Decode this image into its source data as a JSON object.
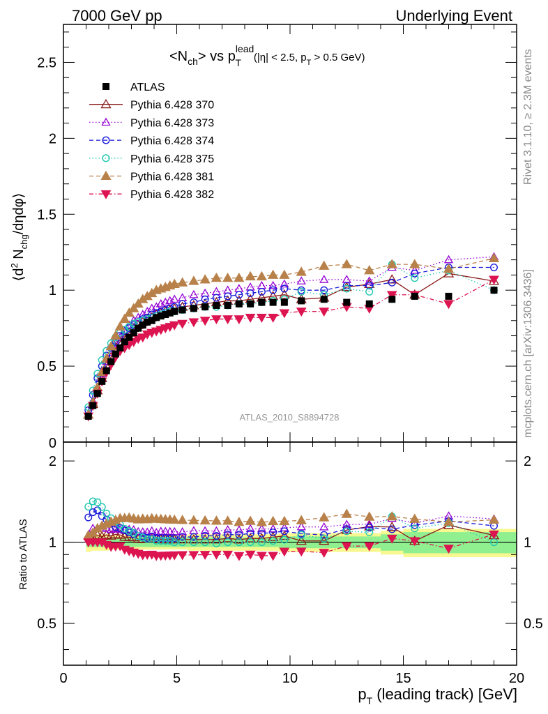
{
  "header": {
    "left": "7000 GeV pp",
    "right": "Underlying Event"
  },
  "side_labels": {
    "top": "Rivet 3.1.10, ≥ 2.3M events",
    "bottom": "mcplots.cern.ch [arXiv:1306.3436]"
  },
  "analysis_tag": "ATLAS_2010_S8894728",
  "colors": {
    "ATLAS": "#000000",
    "p370": "#8b1a1a",
    "p373": "#9400d3",
    "p374": "#1a1ad9",
    "p375": "#20c8b0",
    "p381": "#b8814a",
    "p382": "#dc1450",
    "band_inner": "#90f090",
    "band_outer": "#f8f890"
  },
  "chart_data": {
    "type": "scatter",
    "title": "<N_ch> vs p_T^lead (|η| < 2.5, p_T > 0.5 GeV)",
    "xlabel": "p_T (leading track) [GeV]",
    "ylabel": "⟨d² N_chg/dηdφ⟩",
    "ratio_ylabel": "Ratio to ATLAS",
    "xlim": [
      0,
      20
    ],
    "ylim": [
      0,
      2.75
    ],
    "ratio_ylim": [
      0.35,
      2.35
    ],
    "x_ticks": [
      0,
      5,
      10,
      15,
      20
    ],
    "y_ticks": [
      0.5,
      1,
      1.5,
      2,
      2.5
    ],
    "y_zero_label": "0",
    "ratio_ticks": [
      0.5,
      1,
      2
    ],
    "legend_position": "top-left",
    "x": [
      1.1,
      1.3,
      1.5,
      1.7,
      1.9,
      2.1,
      2.3,
      2.5,
      2.7,
      2.9,
      3.1,
      3.3,
      3.5,
      3.7,
      3.9,
      4.1,
      4.3,
      4.5,
      4.7,
      4.9,
      5.25,
      5.75,
      6.25,
      6.75,
      7.25,
      7.75,
      8.25,
      8.75,
      9.25,
      9.75,
      10.5,
      11.5,
      12.5,
      13.5,
      14.5,
      15.5,
      17.0,
      19.0
    ],
    "series": [
      {
        "name": "ATLAS",
        "key": "ATLAS",
        "marker": "square",
        "dash": "none",
        "values": [
          0.17,
          0.24,
          0.32,
          0.4,
          0.47,
          0.53,
          0.58,
          0.62,
          0.66,
          0.69,
          0.72,
          0.75,
          0.77,
          0.79,
          0.8,
          0.82,
          0.83,
          0.84,
          0.85,
          0.86,
          0.87,
          0.88,
          0.89,
          0.9,
          0.9,
          0.91,
          0.91,
          0.92,
          0.92,
          0.92,
          0.93,
          0.94,
          0.92,
          0.91,
          0.94,
          0.96,
          0.96,
          1.0
        ]
      },
      {
        "name": "Pythia 6.428 370",
        "key": "p370",
        "marker": "tri-open",
        "dash": "none",
        "values": [
          0.18,
          0.25,
          0.34,
          0.42,
          0.5,
          0.56,
          0.62,
          0.66,
          0.69,
          0.72,
          0.75,
          0.77,
          0.79,
          0.81,
          0.82,
          0.84,
          0.85,
          0.86,
          0.87,
          0.88,
          0.89,
          0.9,
          0.91,
          0.92,
          0.93,
          0.93,
          0.94,
          0.95,
          0.96,
          0.97,
          0.94,
          0.95,
          1.02,
          1.04,
          1.07,
          0.97,
          1.11,
          1.06
        ]
      },
      {
        "name": "Pythia 6.428 373",
        "key": "p373",
        "marker": "tri-open-small",
        "dash": "1.5 3",
        "values": [
          0.18,
          0.27,
          0.36,
          0.45,
          0.53,
          0.59,
          0.65,
          0.69,
          0.73,
          0.77,
          0.8,
          0.82,
          0.84,
          0.86,
          0.88,
          0.89,
          0.91,
          0.92,
          0.93,
          0.94,
          0.95,
          0.97,
          0.98,
          0.99,
          1.0,
          1.01,
          1.02,
          1.03,
          1.03,
          1.04,
          1.06,
          1.07,
          1.07,
          1.06,
          1.15,
          1.13,
          1.2,
          1.22
        ]
      },
      {
        "name": "Pythia 6.428 374",
        "key": "p374",
        "marker": "circle-open",
        "dash": "6 4",
        "values": [
          0.21,
          0.31,
          0.42,
          0.5,
          0.57,
          0.62,
          0.66,
          0.7,
          0.73,
          0.75,
          0.77,
          0.79,
          0.81,
          0.82,
          0.84,
          0.85,
          0.86,
          0.87,
          0.88,
          0.89,
          0.91,
          0.92,
          0.94,
          0.95,
          0.96,
          0.97,
          0.98,
          0.99,
          1.0,
          1.01,
          1.0,
          1.0,
          1.03,
          1.03,
          1.05,
          1.11,
          1.15,
          1.15
        ]
      },
      {
        "name": "Pythia 6.428 375",
        "key": "p375",
        "marker": "circle-open",
        "dash": "1.5 3",
        "values": [
          0.23,
          0.34,
          0.45,
          0.54,
          0.6,
          0.65,
          0.69,
          0.72,
          0.74,
          0.76,
          0.78,
          0.79,
          0.8,
          0.81,
          0.82,
          0.83,
          0.84,
          0.85,
          0.86,
          0.86,
          0.87,
          0.88,
          0.89,
          0.89,
          0.9,
          0.91,
          0.91,
          0.92,
          0.93,
          0.94,
          0.99,
          0.97,
          1.01,
          0.99,
          1.17,
          1.08,
          1.13,
          1.0
        ]
      },
      {
        "name": "Pythia 6.428 381",
        "key": "p381",
        "marker": "tri-filled",
        "dash": "6 4",
        "values": [
          0.18,
          0.26,
          0.36,
          0.46,
          0.55,
          0.63,
          0.7,
          0.76,
          0.81,
          0.85,
          0.88,
          0.91,
          0.94,
          0.96,
          0.98,
          1.0,
          1.01,
          1.02,
          1.03,
          1.04,
          1.05,
          1.06,
          1.07,
          1.08,
          1.08,
          1.08,
          1.09,
          1.09,
          1.1,
          1.1,
          1.12,
          1.16,
          1.17,
          1.13,
          1.17,
          1.17,
          1.14,
          1.21
        ]
      },
      {
        "name": "Pythia 6.428 382",
        "key": "p382",
        "marker": "tri-down-filled",
        "dash": "6 3 1.5 3",
        "values": [
          0.17,
          0.24,
          0.32,
          0.4,
          0.46,
          0.51,
          0.56,
          0.6,
          0.62,
          0.64,
          0.66,
          0.68,
          0.69,
          0.71,
          0.72,
          0.73,
          0.74,
          0.75,
          0.76,
          0.77,
          0.78,
          0.79,
          0.8,
          0.81,
          0.81,
          0.81,
          0.82,
          0.82,
          0.82,
          0.85,
          0.86,
          0.86,
          0.89,
          0.88,
          0.97,
          0.97,
          0.91,
          1.07
        ]
      }
    ],
    "ratio_band": {
      "x_edges": [
        1.0,
        1.2,
        1.4,
        1.6,
        1.8,
        2.0,
        2.2,
        2.4,
        2.6,
        2.8,
        3.0,
        3.2,
        3.4,
        3.6,
        3.8,
        4.0,
        4.2,
        4.4,
        4.6,
        4.8,
        5.0,
        5.5,
        6.0,
        6.5,
        7.0,
        7.5,
        8.0,
        8.5,
        9.0,
        9.5,
        10.0,
        11.0,
        12.0,
        13.0,
        14.0,
        15.0,
        16.0,
        18.0,
        20.0
      ],
      "inner": [
        0.04,
        0.04,
        0.04,
        0.04,
        0.04,
        0.04,
        0.04,
        0.04,
        0.04,
        0.04,
        0.04,
        0.04,
        0.04,
        0.04,
        0.04,
        0.04,
        0.04,
        0.04,
        0.04,
        0.04,
        0.04,
        0.04,
        0.04,
        0.04,
        0.04,
        0.04,
        0.04,
        0.04,
        0.04,
        0.05,
        0.05,
        0.05,
        0.05,
        0.05,
        0.07,
        0.09,
        0.09,
        0.09
      ],
      "outer": [
        0.08,
        0.07,
        0.07,
        0.07,
        0.07,
        0.06,
        0.06,
        0.06,
        0.06,
        0.06,
        0.06,
        0.06,
        0.06,
        0.06,
        0.06,
        0.06,
        0.06,
        0.06,
        0.06,
        0.06,
        0.06,
        0.07,
        0.07,
        0.07,
        0.07,
        0.07,
        0.07,
        0.07,
        0.07,
        0.08,
        0.08,
        0.08,
        0.08,
        0.08,
        0.1,
        0.12,
        0.12,
        0.12
      ]
    }
  }
}
